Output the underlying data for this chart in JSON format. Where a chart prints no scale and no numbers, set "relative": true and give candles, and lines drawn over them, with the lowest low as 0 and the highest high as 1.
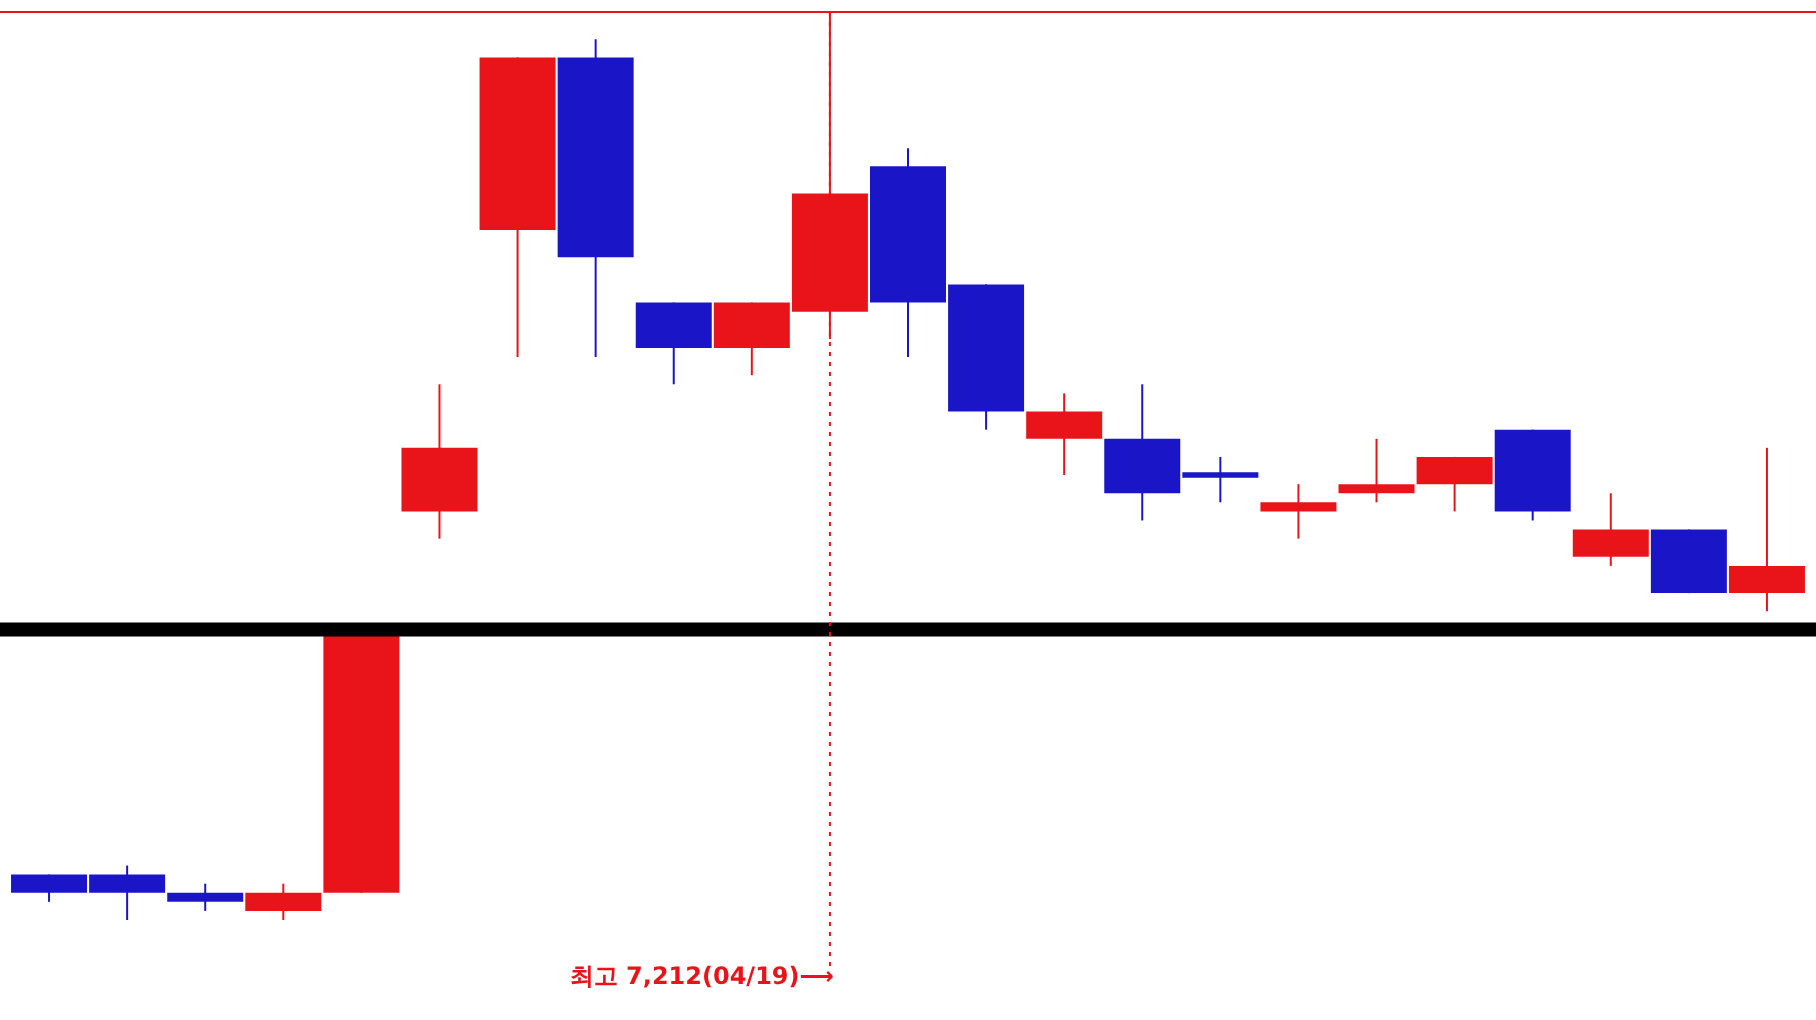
{
  "chart_data": {
    "type": "candlestick",
    "relative": true,
    "categories": [
      null,
      null,
      null,
      null,
      null,
      null,
      null,
      null,
      null,
      null,
      null,
      null,
      null,
      null,
      null,
      null,
      null,
      null,
      null,
      null,
      null,
      null,
      null
    ],
    "ohlc": [
      [
        0.05,
        0.05,
        0.02,
        0.03
      ],
      [
        0.05,
        0.06,
        0,
        0.03
      ],
      [
        0.03,
        0.04,
        0.01,
        0.02
      ],
      [
        0.01,
        0.04,
        0.0,
        0.03
      ],
      [
        0.03,
        0.32,
        0.03,
        0.32
      ],
      [
        0.45,
        0.59,
        0.42,
        0.52
      ],
      [
        0.76,
        0.95,
        0.62,
        0.95
      ],
      [
        0.95,
        0.97,
        0.62,
        0.73
      ],
      [
        0.68,
        0.68,
        0.59,
        0.63
      ],
      [
        0.63,
        0.68,
        0.6,
        0.68
      ],
      [
        0.67,
        1,
        0.64,
        0.8
      ],
      [
        0.83,
        0.85,
        0.62,
        0.68
      ],
      [
        0.7,
        0.7,
        0.54,
        0.56
      ],
      [
        0.53,
        0.58,
        0.49,
        0.56
      ],
      [
        0.53,
        0.59,
        0.44,
        0.47
      ],
      [
        0.493,
        0.51,
        0.46,
        0.487
      ],
      [
        0.45,
        0.48,
        0.42,
        0.46
      ],
      [
        0.47,
        0.53,
        0.46,
        0.48
      ],
      [
        0.48,
        0.51,
        0.45,
        0.51
      ],
      [
        0.54,
        0.54,
        0.44,
        0.45
      ],
      [
        0.4,
        0.47,
        0.39,
        0.43
      ],
      [
        0.43,
        0.43,
        0.36,
        0.36
      ],
      [
        0.36,
        0.52,
        0.34,
        0.39
      ]
    ],
    "colors": [
      "#1a16c8",
      "#1a16c8",
      "#1a16c8",
      "#e8141a",
      "#e8141a",
      "#e8141a",
      "#e8141a",
      "#1a16c8",
      "#1a16c8",
      "#e8141a",
      "#e8141a",
      "#1a16c8",
      "#1a16c8",
      "#e8141a",
      "#1a16c8",
      "#1a16c8",
      "#e8141a",
      "#e8141a",
      "#e8141a",
      "#1a16c8",
      "#e8141a",
      "#1a16c8",
      "#e8141a"
    ],
    "ref_lines": [
      {
        "axis": "y",
        "value": 1,
        "color": "#e8141a"
      },
      {
        "axis": "y",
        "value": 0.32,
        "color": "#000000"
      }
    ],
    "annotations": [
      "최고 7,212(04/19)⟶"
    ]
  }
}
